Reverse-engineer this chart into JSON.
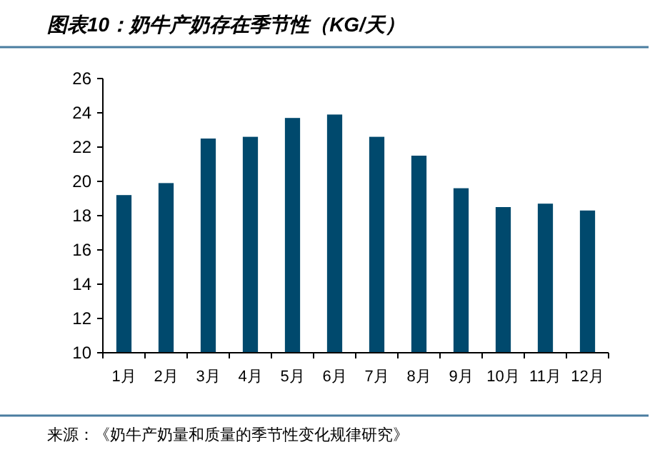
{
  "chart_data": {
    "type": "bar",
    "title": "图表10：奶牛产奶存在季节性（KG/天）",
    "categories": [
      "1月",
      "2月",
      "3月",
      "4月",
      "5月",
      "6月",
      "7月",
      "8月",
      "9月",
      "10月",
      "11月",
      "12月"
    ],
    "values": [
      19.2,
      19.9,
      22.5,
      22.6,
      23.7,
      23.9,
      22.6,
      21.5,
      19.6,
      18.5,
      18.7,
      18.3
    ],
    "color": "#00496d",
    "ylim": [
      10,
      26
    ],
    "yticks": [
      10,
      12,
      14,
      16,
      18,
      20,
      22,
      24,
      26
    ],
    "grid": false,
    "annotations": [
      "来源：《奶牛产奶量和质量的季节性变化规律研究》"
    ]
  }
}
